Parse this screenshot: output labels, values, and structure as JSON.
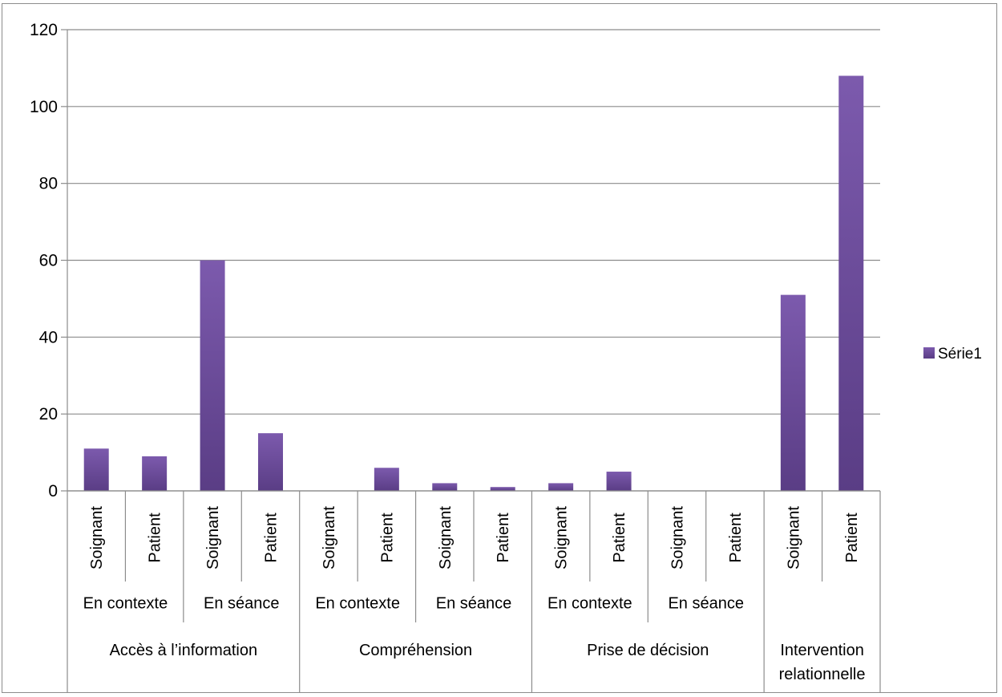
{
  "chart_data": {
    "type": "bar",
    "ylim": [
      0,
      120
    ],
    "yticks": [
      "0",
      "20",
      "40",
      "60",
      "80",
      "100",
      "120"
    ],
    "categories": [
      {
        "level1": "Soignant",
        "level2": "En contexte",
        "level3": "Accès à l’information"
      },
      {
        "level1": "Patient",
        "level2": "En contexte",
        "level3": "Accès à l’information"
      },
      {
        "level1": "Soignant",
        "level2": "En séance",
        "level3": "Accès à l’information"
      },
      {
        "level1": "Patient",
        "level2": "En séance",
        "level3": "Accès à l’information"
      },
      {
        "level1": "Soignant",
        "level2": "En contexte",
        "level3": "Compréhension"
      },
      {
        "level1": "Patient",
        "level2": "En contexte",
        "level3": "Compréhension"
      },
      {
        "level1": "Soignant",
        "level2": "En séance",
        "level3": "Compréhension"
      },
      {
        "level1": "Patient",
        "level2": "En séance",
        "level3": "Compréhension"
      },
      {
        "level1": "Soignant",
        "level2": "En contexte",
        "level3": "Prise de décision"
      },
      {
        "level1": "Patient",
        "level2": "En contexte",
        "level3": "Prise de décision"
      },
      {
        "level1": "Soignant",
        "level2": "En séance",
        "level3": "Prise de décision"
      },
      {
        "level1": "Patient",
        "level2": "En séance",
        "level3": "Prise de décision"
      },
      {
        "level1": "Soignant",
        "level2": "",
        "level3": "Intervention relationnelle"
      },
      {
        "level1": "Patient",
        "level2": "",
        "level3": "Intervention relationnelle"
      }
    ],
    "level2_groups": [
      {
        "label": "En contexte",
        "start": 0,
        "count": 2
      },
      {
        "label": "En séance",
        "start": 2,
        "count": 2
      },
      {
        "label": "En contexte",
        "start": 4,
        "count": 2
      },
      {
        "label": "En séance",
        "start": 6,
        "count": 2
      },
      {
        "label": "En contexte",
        "start": 8,
        "count": 2
      },
      {
        "label": "En séance",
        "start": 10,
        "count": 2
      }
    ],
    "level3_groups": [
      {
        "label": "Accès à l’information",
        "lines": [
          "Accès à l’information"
        ],
        "start": 0,
        "count": 4
      },
      {
        "label": "Compréhension",
        "lines": [
          "Compréhension"
        ],
        "start": 4,
        "count": 4
      },
      {
        "label": "Prise de décision",
        "lines": [
          "Prise de décision"
        ],
        "start": 8,
        "count": 4
      },
      {
        "label": "Intervention relationnelle",
        "lines": [
          "Intervention",
          "relationnelle"
        ],
        "start": 12,
        "count": 2
      }
    ],
    "series": [
      {
        "name": "Série1",
        "values": [
          11,
          9,
          60,
          15,
          0,
          6,
          2,
          1,
          2,
          5,
          0,
          0,
          51,
          108
        ]
      }
    ],
    "colors": {
      "bar_top": "#7c5aad",
      "bar_bottom": "#5a3d85",
      "grid": "#8c8c8c",
      "axis": "#8c8c8c"
    },
    "grid": true,
    "legend_position": "right"
  }
}
